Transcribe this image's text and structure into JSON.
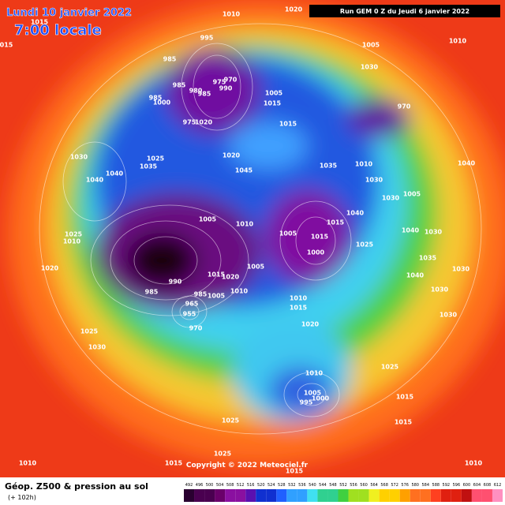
{
  "header": {
    "date": "Lundi 10 janvier 2022",
    "time": "7:00 locale",
    "run": "Run GEM 0 Z du Jeudi 6 janvier 2022"
  },
  "footer": {
    "title": "Géop. Z500 & pression au sol",
    "lead": "(+ 102h)",
    "copyright": "Copyright © 2022 Meteociel.fr"
  },
  "legend": {
    "values": [
      492,
      496,
      500,
      504,
      508,
      512,
      516,
      520,
      524,
      528,
      532,
      536,
      540,
      544,
      548,
      552,
      556,
      560,
      564,
      568,
      572,
      576,
      580,
      584,
      588,
      592,
      596,
      600,
      604,
      608,
      612
    ]
  },
  "isobars": [
    "1010",
    "1020",
    "1015",
    "015",
    "995",
    "1005",
    "1010",
    "1030",
    "985",
    "975",
    "970",
    "990",
    "985",
    "980",
    "985",
    "985",
    "1000",
    "1005",
    "1015",
    "970",
    "975",
    "1020",
    "1015",
    "1020",
    "1045",
    "1030",
    "1025",
    "1035",
    "1040",
    "1040",
    "1035",
    "1010",
    "1040",
    "1030",
    "1030",
    "1005",
    "1005",
    "1010",
    "1040",
    "1040",
    "1030",
    "1025",
    "1010",
    "1005",
    "1015",
    "1015",
    "1025",
    "1000",
    "1035",
    "1020",
    "1030",
    "1015",
    "1020",
    "1005",
    "990",
    "1040",
    "1030",
    "985",
    "1010",
    "1005",
    "985",
    "965",
    "955",
    "1010",
    "970",
    "1015",
    "1030",
    "1025",
    "1030",
    "1020",
    "1025",
    "1010",
    "1005",
    "995",
    "1000",
    "1015",
    "1025",
    "1015",
    "1025",
    "1015",
    "1010",
    "1010",
    "1015"
  ]
}
